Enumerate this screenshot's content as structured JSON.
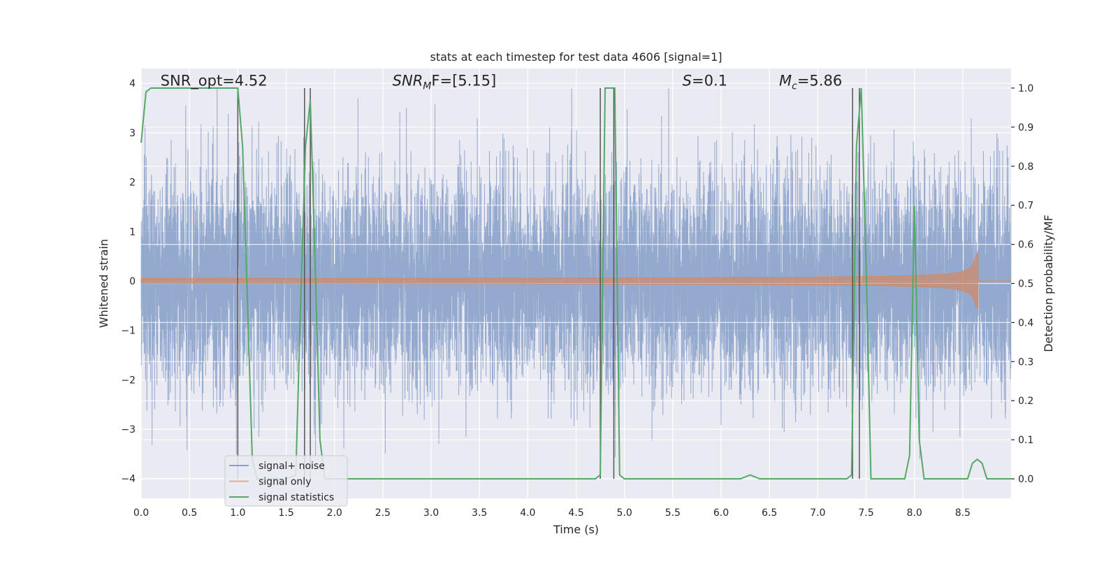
{
  "chart_data": {
    "type": "line",
    "title": "stats at each timestep for test data 4606 [signal=1]",
    "xlabel": "Time (s)",
    "ylabel_left": "Whitened strain",
    "ylabel_right": "Detection probability/MF",
    "xlim": [
      0.0,
      9.0
    ],
    "ylim_left": [
      -4.4,
      4.3
    ],
    "ylim_right": [
      -0.05,
      1.05
    ],
    "x_ticks": [
      0.0,
      0.5,
      1.0,
      1.5,
      2.0,
      2.5,
      3.0,
      3.5,
      4.0,
      4.5,
      5.0,
      5.5,
      6.0,
      6.5,
      7.0,
      7.5,
      8.0,
      8.5
    ],
    "x_tick_labels": [
      "0.0",
      "0.5",
      "1.0",
      "1.5",
      "2.0",
      "2.5",
      "3.0",
      "3.5",
      "4.0",
      "4.5",
      "5.0",
      "5.5",
      "6.0",
      "6.5",
      "7.0",
      "7.5",
      "8.0",
      "8.5"
    ],
    "y_left_ticks": [
      -4,
      -3,
      -2,
      -1,
      0,
      1,
      2,
      3,
      4
    ],
    "y_left_tick_labels": [
      "−4",
      "−3",
      "−2",
      "−1",
      "0",
      "1",
      "2",
      "3",
      "4"
    ],
    "y_right_ticks": [
      0.0,
      0.1,
      0.2,
      0.3,
      0.4,
      0.5,
      0.6,
      0.7,
      0.8,
      0.9,
      1.0
    ],
    "y_right_tick_labels": [
      "0.0",
      "0.1",
      "0.2",
      "0.3",
      "0.4",
      "0.5",
      "0.6",
      "0.7",
      "0.8",
      "0.9",
      "1.0"
    ],
    "grid": true,
    "legend_position": "lower-left",
    "series": [
      {
        "name": "signal+ noise",
        "axis": "left",
        "color": "#4c72b0",
        "style": "noise",
        "sample_rate_hz": 1024,
        "std": 1.0,
        "typical_range": [
          -3.6,
          3.9
        ]
      },
      {
        "name": "signal only",
        "axis": "left",
        "color": "#dd8452",
        "style": "chirp",
        "start_s": 0.0,
        "end_s": 8.66,
        "peak_amplitude": 0.55
      },
      {
        "name": "signal statistics",
        "axis": "right",
        "color": "#55a868",
        "style": "line",
        "x": [
          0.0,
          0.05,
          0.1,
          0.2,
          0.3,
          0.5,
          0.7,
          0.9,
          1.0,
          1.05,
          1.1,
          1.15,
          1.2,
          1.3,
          1.5,
          1.6,
          1.65,
          1.7,
          1.75,
          1.8,
          1.85,
          1.9,
          2.0,
          2.5,
          3.0,
          3.5,
          4.0,
          4.5,
          4.7,
          4.75,
          4.8,
          4.85,
          4.9,
          4.95,
          5.0,
          5.3,
          6.0,
          6.2,
          6.3,
          6.4,
          7.0,
          7.3,
          7.35,
          7.4,
          7.45,
          7.5,
          7.55,
          7.6,
          7.8,
          7.9,
          7.95,
          8.0,
          8.05,
          8.1,
          8.15,
          8.2,
          8.5,
          8.55,
          8.6,
          8.65,
          8.7,
          8.75,
          9.0
        ],
        "y": [
          0.86,
          0.99,
          1.0,
          1.0,
          1.0,
          1.0,
          1.0,
          1.0,
          1.0,
          0.85,
          0.45,
          0.05,
          0.0,
          0.0,
          0.0,
          0.01,
          0.45,
          0.85,
          0.97,
          0.55,
          0.1,
          0.0,
          0.0,
          0.0,
          0.0,
          0.0,
          0.0,
          0.0,
          0.0,
          0.01,
          1.0,
          1.0,
          1.0,
          0.01,
          0.0,
          0.0,
          0.0,
          0.0,
          0.01,
          0.0,
          0.0,
          0.0,
          0.01,
          0.85,
          1.0,
          0.55,
          0.0,
          0.0,
          0.0,
          0.0,
          0.06,
          0.7,
          0.1,
          0.0,
          0.0,
          0.0,
          0.0,
          0.0,
          0.04,
          0.05,
          0.04,
          0.0,
          0.0
        ]
      }
    ],
    "vertical_lines": [
      1.0,
      1.69,
      1.75,
      4.75,
      4.89,
      7.36,
      7.43
    ],
    "vline_color": "#555555",
    "annotations": [
      {
        "base": "SNR_opt=4.52",
        "sub": "",
        "tail": "",
        "x": 0.2,
        "y": 4.05
      },
      {
        "base": "SNR",
        "sub": "M",
        "tail": "F=[5.15]",
        "x": 2.6,
        "y": 4.05,
        "italic_base": true
      },
      {
        "base": "S",
        "sub": "",
        "tail": "=0.1",
        "x": 5.6,
        "y": 4.05,
        "italic_base": true
      },
      {
        "base": "M",
        "sub": "c",
        "tail": "=5.86",
        "x": 6.6,
        "y": 4.05,
        "italic_base": true
      }
    ],
    "legend": [
      {
        "label": "signal+ noise",
        "color": "#4c72b0"
      },
      {
        "label": "signal only",
        "color": "#dd8452"
      },
      {
        "label": "signal statistics",
        "color": "#55a868"
      }
    ]
  }
}
